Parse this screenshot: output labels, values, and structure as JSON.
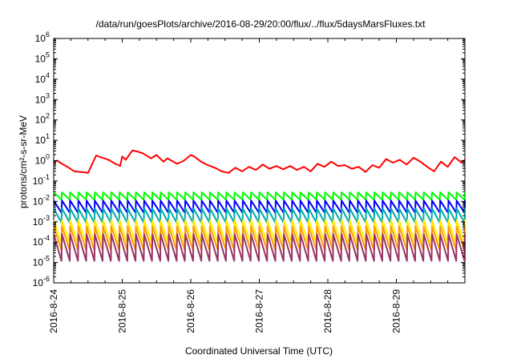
{
  "chart_data": {
    "type": "line",
    "title": "/data/run/goesPlots/archive/2016-08-29/20:00/flux/../flux/5daysMarsFluxes.txt",
    "xlabel": "Coordinated Universal Time (UTC)",
    "ylabel": "protons/cm²-s-sr-MeV",
    "x_ticks": [
      "2016-8-24",
      "2016-8-25",
      "2016-8-26",
      "2016-8-27",
      "2016-8-28",
      "2016-8-29"
    ],
    "xlim_days": [
      0,
      6.0
    ],
    "ylim": [
      1e-06,
      1000000.0
    ],
    "yscale": "log",
    "y_tick_exponents": [
      -6,
      -5,
      -4,
      -3,
      -2,
      -1,
      0,
      1,
      2,
      3,
      4,
      5,
      6
    ],
    "y_tick_base": "10",
    "grid": false,
    "series": [
      {
        "color": "#ff0000",
        "kind": "points",
        "x": [
          0.0,
          0.05,
          0.12,
          0.2,
          0.3,
          0.4,
          0.5,
          0.62,
          0.68,
          0.8,
          0.9,
          0.97,
          1.0,
          1.05,
          1.15,
          1.22,
          1.3,
          1.42,
          1.5,
          1.6,
          1.66,
          1.8,
          1.9,
          2.0,
          2.05,
          2.15,
          2.25,
          2.35,
          2.45,
          2.55,
          2.65,
          2.75,
          2.85,
          2.95,
          3.05,
          3.15,
          3.25,
          3.35,
          3.45,
          3.55,
          3.65,
          3.75,
          3.85,
          3.95,
          4.05,
          4.15,
          4.25,
          4.35,
          4.45,
          4.55,
          4.65,
          4.75,
          4.85,
          4.95,
          5.05,
          5.15,
          5.25,
          5.35,
          5.45,
          5.55,
          5.65,
          5.75,
          5.85,
          5.95,
          6.0
        ],
        "y": [
          0.9,
          1.0,
          0.7,
          0.5,
          0.3,
          0.28,
          0.25,
          1.8,
          1.5,
          1.1,
          0.7,
          0.55,
          1.6,
          1.1,
          3.2,
          2.8,
          2.3,
          1.3,
          1.9,
          0.9,
          1.3,
          0.7,
          1.0,
          1.9,
          1.6,
          0.9,
          0.6,
          0.45,
          0.3,
          0.25,
          0.45,
          0.3,
          0.5,
          0.35,
          0.65,
          0.4,
          0.55,
          0.38,
          0.55,
          0.35,
          0.5,
          0.3,
          0.7,
          0.5,
          0.9,
          0.55,
          0.6,
          0.4,
          0.5,
          0.28,
          0.6,
          0.45,
          1.2,
          0.8,
          1.1,
          0.65,
          1.4,
          0.9,
          0.5,
          0.3,
          0.9,
          0.5,
          1.5,
          0.8,
          1.1
        ]
      },
      {
        "color": "#00ff00",
        "kind": "sawtooth",
        "period_days": 0.12,
        "start_day": 0.0,
        "end_day": 6.0,
        "peak": 0.028,
        "trough": 0.012
      },
      {
        "color": "#0000ff",
        "kind": "sawtooth",
        "period_days": 0.12,
        "start_day": 0.0,
        "end_day": 6.0,
        "peak": 0.011,
        "trough": 0.0028
      },
      {
        "color": "#00aaaa",
        "kind": "sawtooth",
        "period_days": 0.12,
        "start_day": 0.0,
        "end_day": 6.0,
        "peak": 0.0045,
        "trough": 0.0009
      },
      {
        "color": "#ffee00",
        "kind": "sawtooth",
        "period_days": 0.12,
        "start_day": 0.0,
        "end_day": 6.0,
        "peak": 0.0012,
        "trough": 9e-05
      },
      {
        "color": "#ff9900",
        "kind": "sawtooth",
        "period_days": 0.12,
        "start_day": 0.0,
        "end_day": 6.0,
        "peak": 0.0006,
        "trough": 4e-05
      },
      {
        "color": "#993366",
        "kind": "sawtooth",
        "period_days": 0.12,
        "start_day": 0.0,
        "end_day": 6.0,
        "peak": 0.00025,
        "trough": 1.2e-05
      }
    ]
  }
}
